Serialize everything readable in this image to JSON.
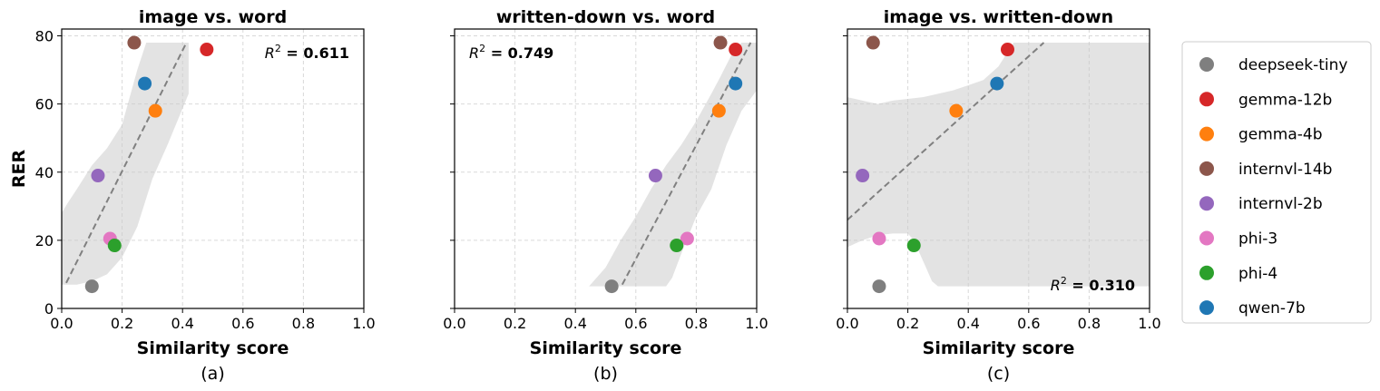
{
  "series_colors": {
    "deepseek-tiny": "#7f7f7f",
    "gemma-12b": "#d62728",
    "gemma-4b": "#ff7f0e",
    "internvl-14b": "#8c564b",
    "internvl-2b": "#9467bd",
    "phi-3": "#e377c2",
    "phi-4": "#2ca02c",
    "qwen-7b": "#1f77b4"
  },
  "legend": {
    "placement": "right-outside",
    "entries": [
      "deepseek-tiny",
      "gemma-12b",
      "gemma-4b",
      "internvl-14b",
      "internvl-2b",
      "phi-3",
      "phi-4",
      "qwen-7b"
    ]
  },
  "shared": {
    "ylabel": "RER",
    "xlabel": "Similarity score",
    "xlim": [
      0,
      1.0
    ],
    "ylim": [
      0,
      82
    ],
    "x_ticks": [
      "0.0",
      "0.2",
      "0.4",
      "0.6",
      "0.8",
      "1.0"
    ],
    "y_ticks": [
      "0",
      "20",
      "40",
      "60",
      "80"
    ]
  },
  "chart_data": [
    {
      "type": "scatter",
      "title": "image vs. word",
      "panel_label": "(a)",
      "xlabel": "Similarity score",
      "ylabel": "RER",
      "xlim": [
        0,
        1.0
      ],
      "ylim": [
        0,
        82
      ],
      "grid": true,
      "r2_label": "= 0.611",
      "r2_position": "top-right",
      "points": [
        {
          "name": "deepseek-tiny",
          "x": 0.1,
          "y": 6.5
        },
        {
          "name": "gemma-12b",
          "x": 0.48,
          "y": 76
        },
        {
          "name": "gemma-4b",
          "x": 0.31,
          "y": 58
        },
        {
          "name": "internvl-14b",
          "x": 0.24,
          "y": 78
        },
        {
          "name": "internvl-2b",
          "x": 0.12,
          "y": 39
        },
        {
          "name": "phi-3",
          "x": 0.16,
          "y": 20.5
        },
        {
          "name": "phi-4",
          "x": 0.175,
          "y": 18.5
        },
        {
          "name": "qwen-7b",
          "x": 0.275,
          "y": 66
        }
      ],
      "fit_line": [
        [
          0.015,
          7.5
        ],
        [
          0.41,
          77.5
        ]
      ],
      "band": {
        "upper": [
          [
            0.0,
            28
          ],
          [
            0.02,
            31
          ],
          [
            0.05,
            35
          ],
          [
            0.1,
            42
          ],
          [
            0.15,
            47
          ],
          [
            0.2,
            54
          ],
          [
            0.25,
            70
          ],
          [
            0.28,
            78
          ],
          [
            0.35,
            78
          ],
          [
            0.42,
            78
          ]
        ],
        "lower": [
          [
            0.42,
            63
          ],
          [
            0.35,
            48
          ],
          [
            0.3,
            38
          ],
          [
            0.25,
            24
          ],
          [
            0.2,
            15
          ],
          [
            0.15,
            10
          ],
          [
            0.1,
            8
          ],
          [
            0.05,
            7
          ],
          [
            0.02,
            7
          ],
          [
            0.0,
            7
          ]
        ]
      }
    },
    {
      "type": "scatter",
      "title": "written-down vs. word",
      "panel_label": "(b)",
      "xlabel": "Similarity score",
      "xlim": [
        0,
        1.0
      ],
      "ylim": [
        0,
        82
      ],
      "grid": true,
      "r2_label": "= 0.749",
      "r2_position": "top-left",
      "points": [
        {
          "name": "deepseek-tiny",
          "x": 0.52,
          "y": 6.5
        },
        {
          "name": "gemma-12b",
          "x": 0.93,
          "y": 76
        },
        {
          "name": "gemma-4b",
          "x": 0.875,
          "y": 58
        },
        {
          "name": "internvl-14b",
          "x": 0.88,
          "y": 78
        },
        {
          "name": "internvl-2b",
          "x": 0.665,
          "y": 39
        },
        {
          "name": "phi-3",
          "x": 0.77,
          "y": 20.5
        },
        {
          "name": "phi-4",
          "x": 0.735,
          "y": 18.5
        },
        {
          "name": "qwen-7b",
          "x": 0.93,
          "y": 66
        }
      ],
      "fit_line": [
        [
          0.555,
          7
        ],
        [
          0.98,
          78
        ]
      ],
      "band": {
        "upper": [
          [
            0.445,
            6.5
          ],
          [
            0.5,
            12
          ],
          [
            0.55,
            20
          ],
          [
            0.6,
            27
          ],
          [
            0.65,
            35
          ],
          [
            0.7,
            42
          ],
          [
            0.75,
            48
          ],
          [
            0.8,
            55
          ],
          [
            0.85,
            63
          ],
          [
            0.88,
            68
          ],
          [
            0.92,
            75
          ],
          [
            0.95,
            78
          ],
          [
            1.0,
            78
          ]
        ],
        "lower": [
          [
            1.0,
            64
          ],
          [
            0.95,
            58
          ],
          [
            0.9,
            48
          ],
          [
            0.85,
            35
          ],
          [
            0.8,
            27
          ],
          [
            0.75,
            16
          ],
          [
            0.72,
            9
          ],
          [
            0.7,
            6.5
          ],
          [
            0.65,
            6.5
          ],
          [
            0.55,
            6.5
          ],
          [
            0.445,
            6.5
          ]
        ]
      }
    },
    {
      "type": "scatter",
      "title": "image vs. written-down",
      "panel_label": "(c)",
      "xlabel": "Similarity score",
      "xlim": [
        0,
        1.0
      ],
      "ylim": [
        0,
        82
      ],
      "grid": true,
      "r2_label": "= 0.310",
      "r2_position": "bottom-right",
      "points": [
        {
          "name": "deepseek-tiny",
          "x": 0.105,
          "y": 6.5
        },
        {
          "name": "gemma-12b",
          "x": 0.53,
          "y": 76
        },
        {
          "name": "gemma-4b",
          "x": 0.36,
          "y": 58
        },
        {
          "name": "internvl-14b",
          "x": 0.085,
          "y": 78
        },
        {
          "name": "internvl-2b",
          "x": 0.05,
          "y": 39
        },
        {
          "name": "phi-3",
          "x": 0.105,
          "y": 20.5
        },
        {
          "name": "phi-4",
          "x": 0.22,
          "y": 18.5
        },
        {
          "name": "qwen-7b",
          "x": 0.495,
          "y": 66
        }
      ],
      "fit_line": [
        [
          0.0,
          26
        ],
        [
          0.65,
          78
        ]
      ],
      "band": {
        "upper": [
          [
            0.0,
            62
          ],
          [
            0.05,
            61
          ],
          [
            0.1,
            60
          ],
          [
            0.15,
            61
          ],
          [
            0.2,
            61.5
          ],
          [
            0.25,
            62
          ],
          [
            0.3,
            63
          ],
          [
            0.35,
            64
          ],
          [
            0.4,
            65.5
          ],
          [
            0.45,
            67
          ],
          [
            0.5,
            71
          ],
          [
            0.55,
            78
          ],
          [
            1.0,
            78
          ]
        ],
        "lower": [
          [
            1.0,
            6.5
          ],
          [
            0.3,
            6.5
          ],
          [
            0.28,
            8
          ],
          [
            0.26,
            12
          ],
          [
            0.24,
            16
          ],
          [
            0.22,
            20
          ],
          [
            0.2,
            22
          ],
          [
            0.15,
            22
          ],
          [
            0.1,
            21.5
          ],
          [
            0.05,
            20
          ],
          [
            0.0,
            18
          ]
        ]
      }
    }
  ]
}
